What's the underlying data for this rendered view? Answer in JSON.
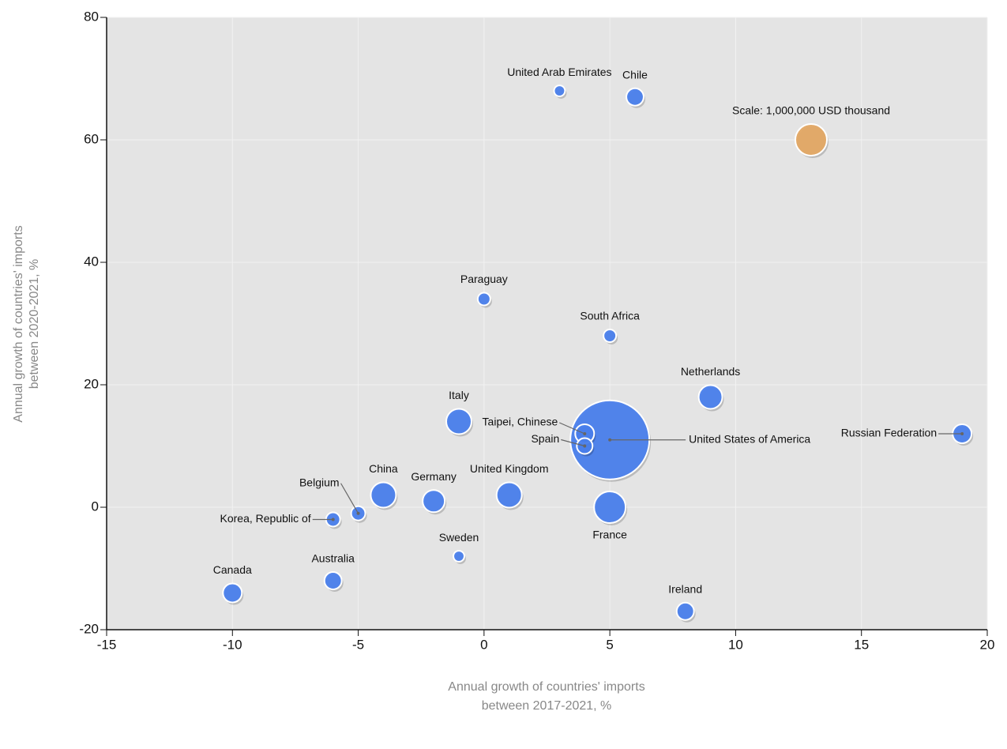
{
  "chart_data": {
    "type": "bubble",
    "x_label": [
      "Annual growth of countries' imports",
      "between 2017-2021, %"
    ],
    "y_label": [
      "Annual growth of countries' imports",
      "between 2020-2021, %"
    ],
    "labels": [
      "United Arab Emirates",
      "Chile",
      "Scale: 1,000,000 USD thousand",
      "Paraguay",
      "South Africa",
      "Netherlands",
      "Italy",
      "Taipei, Chinese",
      "Spain",
      "United States of America",
      "Russian Federation",
      "China",
      "Germany",
      "United Kingdom",
      "Belgium",
      "Korea, Republic of",
      "France",
      "Sweden",
      "Australia",
      "Canada",
      "Ireland"
    ],
    "x": [
      3,
      6,
      13,
      0,
      5,
      9,
      -1,
      4,
      4,
      5,
      19,
      -4,
      -2,
      1,
      -5,
      -6,
      5,
      -1,
      -6,
      -10,
      8
    ],
    "values": [
      68,
      67,
      60,
      34,
      28,
      18,
      14,
      12,
      10,
      11,
      12,
      2,
      1,
      2,
      -1,
      -2,
      0,
      -8,
      -12,
      -14,
      -17
    ],
    "sizes": [
      120000,
      300000,
      1000000,
      160000,
      160000,
      560000,
      640000,
      360000,
      250000,
      6250000,
      360000,
      640000,
      490000,
      640000,
      200000,
      200000,
      1000000,
      120000,
      300000,
      360000,
      300000
    ],
    "colors": [
      "#4a80ec",
      "#4a80ec",
      "#e3a864",
      "#4a80ec",
      "#4a80ec",
      "#4a80ec",
      "#4a80ec",
      "#4a80ec",
      "#4a80ec",
      "#4a80ec",
      "#4a80ec",
      "#4a80ec",
      "#4a80ec",
      "#4a80ec",
      "#4a80ec",
      "#4a80ec",
      "#4a80ec",
      "#4a80ec",
      "#4a80ec",
      "#4a80ec",
      "#4a80ec"
    ],
    "xlim": [
      -15,
      20
    ],
    "xticks": [
      -15,
      -10,
      -5,
      0,
      5,
      10,
      15,
      20
    ],
    "ylim": [
      -20,
      80
    ],
    "yticks": [
      -20,
      0,
      20,
      40,
      60,
      80
    ],
    "grid": true
  }
}
